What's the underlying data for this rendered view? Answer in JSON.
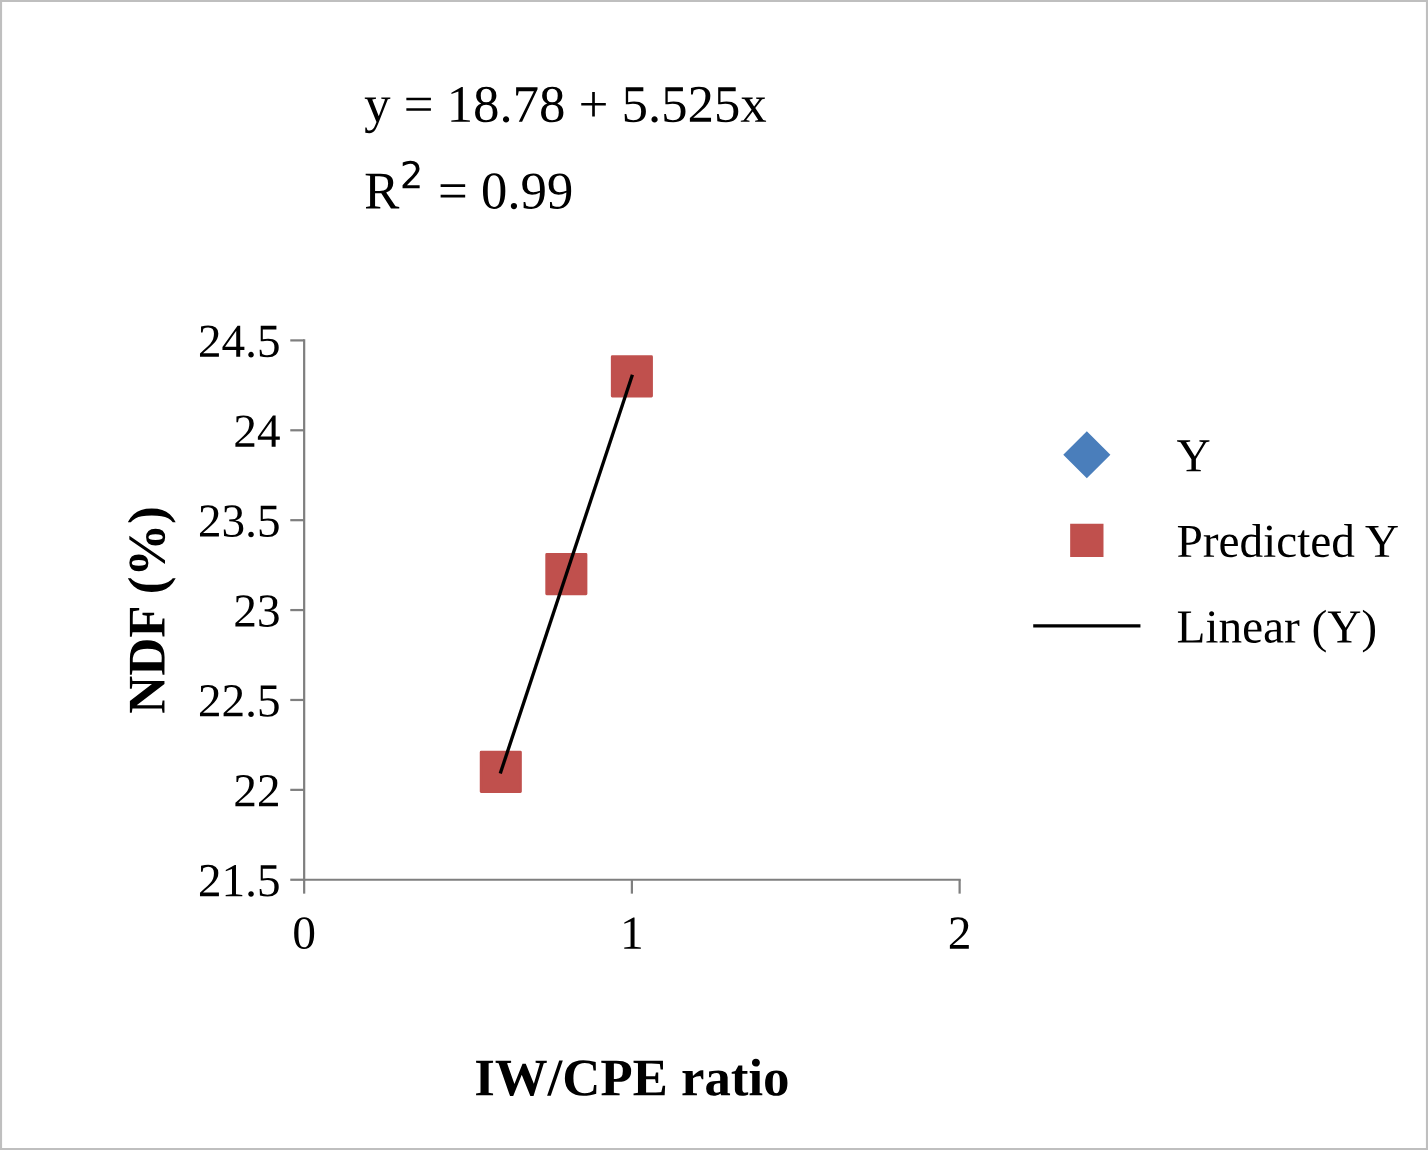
{
  "chart_data": {
    "type": "scatter",
    "xlabel": "IW/CPE ratio",
    "ylabel": "NDF (%)",
    "annotations": [
      "y = 18.78 + 5.525x",
      "R$^{2}$ = 0.99"
    ],
    "series": [
      {
        "name": "Y",
        "color": "#4a7ebb",
        "marker": "diamond"
      },
      {
        "name": "Predicted Y",
        "color": "#c0504d",
        "marker": "square",
        "x": [
          0.6,
          0.8,
          1.0
        ],
        "values": [
          22.1,
          23.2,
          24.3
        ]
      },
      {
        "name": "Linear (Y)",
        "type": "line",
        "color": "#000000",
        "marker": "none",
        "line_style": "solid",
        "x": [
          0.6,
          1.0
        ],
        "values": [
          22.1,
          24.3
        ]
      }
    ],
    "xlim": [
      0,
      2
    ],
    "xticks": [
      0,
      1,
      2
    ],
    "ylim": [
      21.5,
      24.5
    ],
    "yticks": [
      21.5,
      22,
      22.5,
      23,
      23.5,
      24,
      24.5
    ],
    "grid": false,
    "legend": "right"
  }
}
